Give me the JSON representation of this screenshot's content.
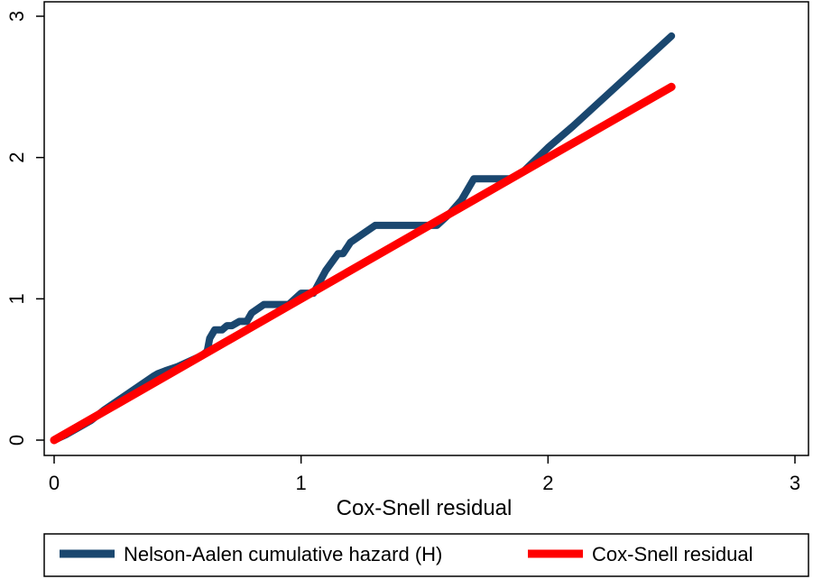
{
  "chart_data": {
    "type": "line",
    "title": "",
    "xlabel": "Cox-Snell residual",
    "ylabel": "",
    "xlim": [
      0,
      3
    ],
    "ylim": [
      0,
      3
    ],
    "xticks": [
      "0",
      "1",
      "2",
      "3"
    ],
    "yticks": [
      "0",
      "1",
      "2",
      "3"
    ],
    "grid": false,
    "legend_position": "bottom",
    "series": [
      {
        "name": "Nelson-Aalen cumulative hazard (H)",
        "color": "#1a476f",
        "x": [
          0.0,
          0.05,
          0.1,
          0.15,
          0.2,
          0.25,
          0.3,
          0.35,
          0.4,
          0.42,
          0.45,
          0.5,
          0.55,
          0.6,
          0.62,
          0.63,
          0.65,
          0.68,
          0.7,
          0.72,
          0.75,
          0.78,
          0.8,
          0.85,
          0.9,
          0.95,
          1.0,
          1.05,
          1.1,
          1.15,
          1.17,
          1.2,
          1.3,
          1.45,
          1.55,
          1.6,
          1.65,
          1.7,
          1.85,
          1.9,
          2.0,
          2.1,
          2.2,
          2.3,
          2.4,
          2.5
        ],
        "y": [
          0.0,
          0.04,
          0.09,
          0.14,
          0.21,
          0.27,
          0.33,
          0.39,
          0.45,
          0.47,
          0.49,
          0.52,
          0.56,
          0.6,
          0.63,
          0.72,
          0.78,
          0.78,
          0.81,
          0.81,
          0.84,
          0.84,
          0.9,
          0.96,
          0.96,
          0.96,
          1.04,
          1.04,
          1.2,
          1.32,
          1.32,
          1.4,
          1.52,
          1.52,
          1.52,
          1.6,
          1.7,
          1.85,
          1.85,
          1.9,
          2.07,
          2.22,
          2.38,
          2.54,
          2.7,
          2.86
        ]
      },
      {
        "name": "Cox-Snell residual",
        "color": "#ff0000",
        "x": [
          0.0,
          2.5
        ],
        "y": [
          0.0,
          2.5
        ]
      }
    ]
  }
}
